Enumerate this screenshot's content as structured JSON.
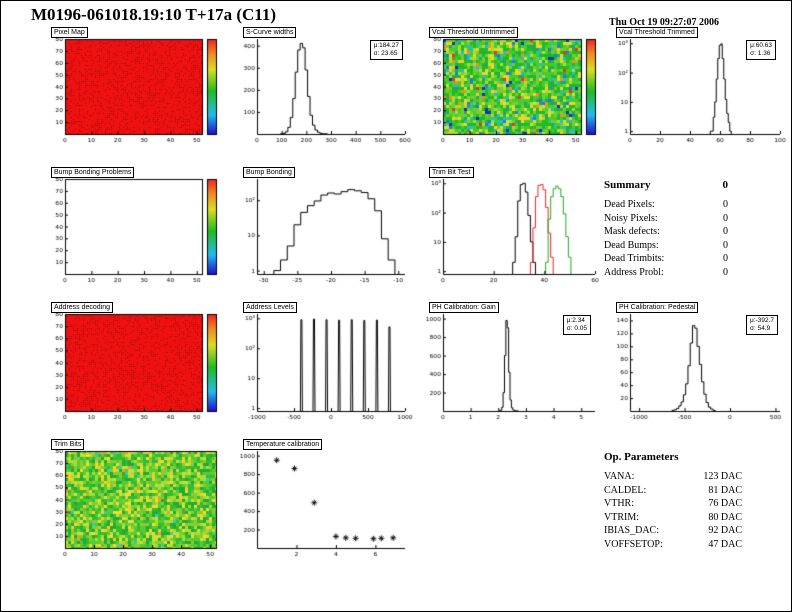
{
  "page": {
    "title": "M0196-061018.19:10 T+17a (C11)",
    "timestamp": "Thu Oct 19 09:27:07 2006"
  },
  "summary": {
    "title": "Summary",
    "total": "0",
    "rows": [
      [
        "Dead Pixels:",
        "0"
      ],
      [
        "Noisy Pixels:",
        "0"
      ],
      [
        "Mask defects:",
        "0"
      ],
      [
        "Dead Bumps:",
        "0"
      ],
      [
        "Dead Trimbits:",
        "0"
      ],
      [
        "Address Probl:",
        "0"
      ]
    ]
  },
  "op_parameters": {
    "title": "Op. Parameters",
    "rows": [
      [
        "VANA:",
        "123 DAC"
      ],
      [
        "CALDEL:",
        "81 DAC"
      ],
      [
        "VTHR:",
        "76 DAC"
      ],
      [
        "VTRIM:",
        "80 DAC"
      ],
      [
        "IBIAS_DAC:",
        "92 DAC"
      ],
      [
        "VOFFSETOP:",
        "47 DAC"
      ]
    ]
  },
  "chart_data": [
    {
      "id": "pixel_map",
      "type": "heatmap",
      "title": "Pixel Map",
      "fill": "solid",
      "fill_color": "#ee1111",
      "noise_seed": 3,
      "colorbar": true,
      "frame": "box",
      "xlim": [
        0,
        52
      ],
      "ylim": [
        0,
        80
      ],
      "xticks": [
        0,
        10,
        20,
        30,
        40,
        50
      ],
      "yticks": [
        10,
        20,
        30,
        40,
        50,
        60,
        70,
        80
      ]
    },
    {
      "id": "s_curve_widths",
      "type": "histogram",
      "title": "S-Curve widths",
      "stats": {
        "mu": "μ:184.27",
        "sigma": "σ: 23.65"
      },
      "frame": "axes",
      "xlim": [
        0,
        600
      ],
      "ylim": [
        0,
        430
      ],
      "xticks": [
        0,
        100,
        200,
        300,
        400,
        500,
        600
      ],
      "yticks": [
        100,
        200,
        300,
        400
      ],
      "points": [
        [
          100,
          1
        ],
        [
          110,
          3
        ],
        [
          120,
          10
        ],
        [
          130,
          30
        ],
        [
          140,
          75
        ],
        [
          150,
          160
        ],
        [
          160,
          280
        ],
        [
          170,
          380
        ],
        [
          180,
          410
        ],
        [
          190,
          390
        ],
        [
          200,
          290
        ],
        [
          210,
          170
        ],
        [
          220,
          85
        ],
        [
          230,
          40
        ],
        [
          240,
          18
        ],
        [
          250,
          8
        ],
        [
          260,
          3
        ],
        [
          270,
          1
        ],
        [
          280,
          1
        ]
      ]
    },
    {
      "id": "vcal_untrimmed",
      "type": "heatmap",
      "title": "Vcal Threshold Untrimmed",
      "fill": "noise",
      "noise_seed": 7,
      "palette": [
        [
          "#1133bb",
          0.015
        ],
        [
          "#2277ee",
          0.03
        ],
        [
          "#22bbdd",
          0.05
        ],
        [
          "#22aa55",
          0.1
        ],
        [
          "#22bb22",
          0.22
        ],
        [
          "#44cc33",
          0.2
        ],
        [
          "#77cc33",
          0.15
        ],
        [
          "#aadd33",
          0.1
        ],
        [
          "#dddd33",
          0.07
        ],
        [
          "#ffcc22",
          0.04
        ],
        [
          "#ff8822",
          0.015
        ],
        [
          "#ee3322",
          0.01
        ]
      ],
      "colorbar": true,
      "frame": "box",
      "xlim": [
        0,
        52
      ],
      "ylim": [
        0,
        80
      ],
      "xticks": [
        0,
        10,
        20,
        30,
        40,
        50
      ],
      "yticks": [
        10,
        20,
        30,
        40,
        50,
        60,
        70,
        80
      ]
    },
    {
      "id": "vcal_trimmed",
      "type": "histogram",
      "title": "Vcal Threshold Trimmed",
      "stats": {
        "mu": "μ:60.63",
        "sigma": "σ: 1.36"
      },
      "frame": "axes",
      "ylog": true,
      "ymax": 1400,
      "xlim": [
        0,
        100
      ],
      "xticks": [
        0,
        20,
        40,
        60,
        80,
        100
      ],
      "ylogticks": [
        {
          "v": 1,
          "t": "1"
        },
        {
          "v": 10,
          "t": "10"
        },
        {
          "v": 100,
          "t": "10²"
        },
        {
          "v": 1000,
          "t": "10³"
        }
      ],
      "points": [
        [
          54,
          1
        ],
        [
          55,
          1
        ],
        [
          56,
          3
        ],
        [
          57,
          10
        ],
        [
          58,
          60
        ],
        [
          59,
          300
        ],
        [
          60,
          850
        ],
        [
          61,
          950
        ],
        [
          62,
          300
        ],
        [
          63,
          60
        ],
        [
          64,
          12
        ],
        [
          65,
          4
        ],
        [
          66,
          2
        ],
        [
          67,
          1
        ]
      ]
    },
    {
      "id": "bump_problems",
      "type": "heatmap",
      "title": "Bump Bonding Problems",
      "fill": "none",
      "colorbar": true,
      "frame": "box",
      "xlim": [
        0,
        52
      ],
      "ylim": [
        0,
        80
      ],
      "xticks": [
        0,
        10,
        20,
        30,
        40,
        50
      ],
      "yticks": [
        10,
        20,
        30,
        40,
        50,
        60,
        70,
        80
      ]
    },
    {
      "id": "bump_bonding",
      "type": "histogram",
      "title": "Bump Bonding",
      "frame": "axes",
      "ylog": true,
      "ymax": 400,
      "xlim": [
        -31,
        -9
      ],
      "xticks": [
        -30,
        -25,
        -20,
        -15,
        -10
      ],
      "ylogticks": [
        {
          "v": 1,
          "t": "1"
        },
        {
          "v": 10,
          "t": "10"
        },
        {
          "v": 100,
          "t": "10²"
        }
      ],
      "points": [
        [
          -28,
          1
        ],
        [
          -27,
          2
        ],
        [
          -26,
          5
        ],
        [
          -25,
          20
        ],
        [
          -24,
          45
        ],
        [
          -23,
          70
        ],
        [
          -22,
          95
        ],
        [
          -21,
          140
        ],
        [
          -20,
          160
        ],
        [
          -19,
          150
        ],
        [
          -18,
          175
        ],
        [
          -17,
          200
        ],
        [
          -16,
          185
        ],
        [
          -15,
          165
        ],
        [
          -14,
          110
        ],
        [
          -13,
          50
        ],
        [
          -12,
          8
        ],
        [
          -11,
          2
        ]
      ]
    },
    {
      "id": "trim_bit_test",
      "type": "histogram",
      "title": "Trim Bit Test",
      "frame": "axes",
      "ylog": true,
      "ymax": 1400,
      "xlim": [
        0,
        60
      ],
      "xticks": [
        0,
        20,
        40,
        60
      ],
      "ylogticks": [
        {
          "v": 1,
          "t": "1"
        },
        {
          "v": 10,
          "t": "10"
        },
        {
          "v": 100,
          "t": "10²"
        },
        {
          "v": 1000,
          "t": "10³"
        }
      ],
      "series": [
        {
          "name": "trim-bits-black",
          "color": "#000000",
          "points": [
            [
              28,
              2
            ],
            [
              29,
              15
            ],
            [
              30,
              250
            ],
            [
              31,
              900
            ],
            [
              32,
              1000
            ],
            [
              33,
              500
            ],
            [
              34,
              80
            ],
            [
              35,
              10
            ],
            [
              36,
              2
            ]
          ]
        },
        {
          "name": "trim-bits-red",
          "color": "#ee2222",
          "points": [
            [
              35,
              2
            ],
            [
              36,
              30
            ],
            [
              37,
              350
            ],
            [
              38,
              850
            ],
            [
              39,
              900
            ],
            [
              40,
              600
            ],
            [
              41,
              150
            ],
            [
              42,
              20
            ],
            [
              43,
              3
            ]
          ]
        },
        {
          "name": "trim-bits-green",
          "color": "#22aa22",
          "points": [
            [
              41,
              2
            ],
            [
              42,
              60
            ],
            [
              43,
              350
            ],
            [
              44,
              650
            ],
            [
              45,
              800
            ],
            [
              46,
              650
            ],
            [
              47,
              350
            ],
            [
              48,
              90
            ],
            [
              49,
              15
            ],
            [
              50,
              3
            ]
          ]
        }
      ]
    },
    {
      "id": "address_decoding",
      "type": "heatmap",
      "title": "Address decoding",
      "fill": "solid",
      "fill_color": "#ee1111",
      "noise_seed": 11,
      "colorbar": true,
      "frame": "box",
      "xlim": [
        0,
        52
      ],
      "ylim": [
        0,
        80
      ],
      "xticks": [
        0,
        10,
        20,
        30,
        40,
        50
      ],
      "yticks": [
        10,
        20,
        30,
        40,
        50,
        60,
        70,
        80
      ]
    },
    {
      "id": "address_levels",
      "type": "spikes",
      "title": "Address Levels",
      "frame": "axes",
      "ylog": true,
      "ymax": 1400,
      "xlim": [
        -1000,
        1000
      ],
      "xticks": [
        -1000,
        -500,
        0,
        500,
        1000
      ],
      "ylogticks": [
        {
          "v": 1,
          "t": "1"
        },
        {
          "v": 10,
          "t": "10"
        },
        {
          "v": 100,
          "t": "10²"
        },
        {
          "v": 1000,
          "t": "10³"
        }
      ],
      "spikes": [
        [
          -400,
          900
        ],
        [
          -230,
          950
        ],
        [
          -60,
          900
        ],
        [
          110,
          870
        ],
        [
          280,
          900
        ],
        [
          450,
          850
        ],
        [
          620,
          880
        ],
        [
          790,
          520
        ]
      ]
    },
    {
      "id": "ph_gain",
      "type": "histogram",
      "title": "PH Calibration: Gain",
      "stats": {
        "mu": "μ:2.34",
        "sigma": "σ: 0.05"
      },
      "frame": "axes",
      "xlim": [
        0,
        5.5
      ],
      "ylim": [
        0,
        1050
      ],
      "xticks": [
        0,
        1,
        2,
        3,
        4,
        5
      ],
      "yticks": [
        200,
        400,
        600,
        800,
        1000
      ],
      "points": [
        [
          2.05,
          2
        ],
        [
          2.1,
          8
        ],
        [
          2.15,
          40
        ],
        [
          2.2,
          200
        ],
        [
          2.25,
          600
        ],
        [
          2.3,
          980
        ],
        [
          2.35,
          900
        ],
        [
          2.4,
          420
        ],
        [
          2.45,
          120
        ],
        [
          2.5,
          35
        ],
        [
          2.55,
          12
        ],
        [
          2.6,
          5
        ],
        [
          2.65,
          2
        ],
        [
          2.7,
          1
        ]
      ]
    },
    {
      "id": "ph_pedestal",
      "type": "histogram",
      "title": "PH Calibration: Pedestal",
      "stats": {
        "mu": "μ:-392.7",
        "sigma": "σ: 54.9"
      },
      "frame": "axes",
      "xlim": [
        -1100,
        550
      ],
      "ylim": [
        0,
        150
      ],
      "xticks": [
        -1000,
        -500,
        0,
        500
      ],
      "yticks": [
        20,
        40,
        60,
        80,
        100,
        120,
        140
      ],
      "points": [
        [
          -625,
          1
        ],
        [
          -600,
          2
        ],
        [
          -575,
          4
        ],
        [
          -550,
          8
        ],
        [
          -525,
          14
        ],
        [
          -500,
          25
        ],
        [
          -475,
          42
        ],
        [
          -450,
          70
        ],
        [
          -425,
          105
        ],
        [
          -400,
          132
        ],
        [
          -375,
          128
        ],
        [
          -350,
          100
        ],
        [
          -325,
          72
        ],
        [
          -300,
          45
        ],
        [
          -275,
          26
        ],
        [
          -250,
          13
        ],
        [
          -225,
          6
        ],
        [
          -200,
          3
        ],
        [
          -175,
          1
        ]
      ]
    },
    {
      "id": "trim_bits",
      "type": "heatmap",
      "title": "Trim Bits",
      "fill": "noise",
      "noise_seed": 23,
      "palette": [
        [
          "#22aa33",
          0.12
        ],
        [
          "#33bb33",
          0.2
        ],
        [
          "#55cc33",
          0.2
        ],
        [
          "#88cc33",
          0.16
        ],
        [
          "#aadd33",
          0.12
        ],
        [
          "#ccdd33",
          0.09
        ],
        [
          "#eedd33",
          0.06
        ],
        [
          "#ffcc22",
          0.03
        ],
        [
          "#ff9922",
          0.01
        ],
        [
          "#33ccbb",
          0.01
        ]
      ],
      "colorbar": false,
      "frame": "box",
      "xlim": [
        0,
        52
      ],
      "ylim": [
        0,
        80
      ],
      "xticks": [
        0,
        10,
        20,
        30,
        40,
        50
      ],
      "yticks": [
        10,
        20,
        30,
        40,
        50,
        60,
        70,
        80
      ]
    },
    {
      "id": "temperature_calibration",
      "type": "scatter",
      "title": "Temperature calibration",
      "frame": "axes",
      "xlim": [
        0,
        7.5
      ],
      "ylim": [
        0,
        1050
      ],
      "xticks": [
        2,
        4,
        6
      ],
      "yticks": [
        200,
        400,
        600,
        800,
        1000
      ],
      "points": [
        [
          1.0,
          950
        ],
        [
          1.9,
          860
        ],
        [
          2.9,
          490
        ],
        [
          4.0,
          125
        ],
        [
          4.5,
          110
        ],
        [
          5.0,
          105
        ],
        [
          5.9,
          100
        ],
        [
          6.3,
          105
        ],
        [
          6.9,
          110
        ]
      ]
    }
  ]
}
